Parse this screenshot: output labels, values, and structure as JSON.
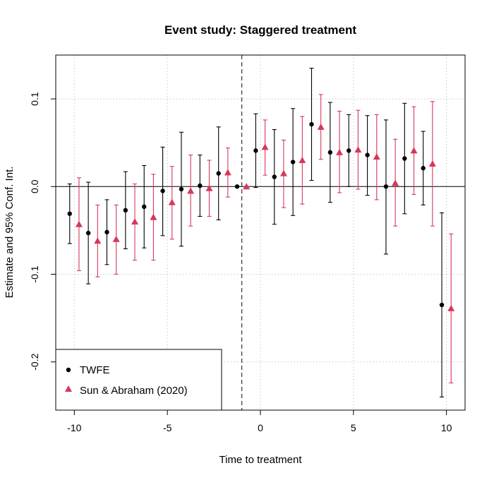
{
  "chart_data": {
    "type": "scatter",
    "title": "Event study: Staggered treatment",
    "xlabel": "Time to treatment",
    "ylabel": "Estimate and 95% Conf. Int.",
    "xlim": [
      -11.0,
      11.0
    ],
    "ylim": [
      -0.255,
      0.15
    ],
    "xticks": [
      -10,
      -5,
      0,
      5,
      10
    ],
    "xtick_labels": [
      "-10",
      "-5",
      "0",
      "5",
      "10"
    ],
    "yticks": [
      -0.2,
      -0.1,
      0.0,
      0.1
    ],
    "ytick_labels": [
      "-0.2",
      "-0.1",
      "0.0",
      "0.1"
    ],
    "grid": true,
    "reference_lines": {
      "vertical_dashed_x": -1,
      "horizontal_y": 0
    },
    "legend_position": "bottom-left",
    "series": [
      {
        "name": "TWFE",
        "marker": "circle",
        "color": "#000000",
        "x": [
          -10,
          -9,
          -8,
          -7,
          -6,
          -5,
          -4,
          -3,
          -2,
          -1,
          0,
          1,
          2,
          3,
          4,
          5,
          6,
          7,
          8,
          9,
          10
        ],
        "y": [
          -0.031,
          -0.053,
          -0.052,
          -0.027,
          -0.023,
          -0.005,
          -0.003,
          0.001,
          0.015,
          0.0,
          0.041,
          0.011,
          0.028,
          0.071,
          0.039,
          0.041,
          0.036,
          0.0,
          0.032,
          0.021,
          -0.135
        ],
        "ci_low": [
          -0.065,
          -0.111,
          -0.089,
          -0.071,
          -0.07,
          -0.056,
          -0.068,
          -0.034,
          -0.038,
          0.0,
          -0.001,
          -0.043,
          -0.033,
          0.007,
          -0.018,
          0.0,
          -0.01,
          -0.077,
          -0.031,
          -0.021,
          -0.24
        ],
        "ci_high": [
          0.003,
          0.005,
          -0.015,
          0.017,
          0.024,
          0.045,
          0.062,
          0.036,
          0.068,
          0.0,
          0.083,
          0.065,
          0.089,
          0.135,
          0.096,
          0.082,
          0.081,
          0.076,
          0.095,
          0.063,
          -0.03
        ]
      },
      {
        "name": "Sun & Abraham (2020)",
        "marker": "triangle",
        "color": "#d6385a",
        "x": [
          -10,
          -9,
          -8,
          -7,
          -6,
          -5,
          -4,
          -3,
          -2,
          -1,
          0,
          1,
          2,
          3,
          4,
          5,
          6,
          7,
          8,
          9,
          10
        ],
        "y": [
          -0.043,
          -0.062,
          -0.06,
          -0.04,
          -0.035,
          -0.018,
          -0.005,
          -0.002,
          0.016,
          0.0,
          0.045,
          0.015,
          0.03,
          0.068,
          0.039,
          0.042,
          0.034,
          0.004,
          0.041,
          0.026,
          -0.139
        ],
        "ci_low": [
          -0.096,
          -0.103,
          -0.1,
          -0.084,
          -0.084,
          -0.06,
          -0.045,
          -0.034,
          -0.012,
          0.0,
          0.013,
          -0.024,
          -0.02,
          0.031,
          -0.007,
          -0.003,
          -0.015,
          -0.045,
          -0.009,
          -0.045,
          -0.224
        ],
        "ci_high": [
          0.01,
          -0.021,
          -0.021,
          0.003,
          0.014,
          0.023,
          0.036,
          0.03,
          0.044,
          0.0,
          0.076,
          0.053,
          0.08,
          0.105,
          0.086,
          0.087,
          0.082,
          0.054,
          0.091,
          0.097,
          -0.054
        ]
      }
    ]
  }
}
